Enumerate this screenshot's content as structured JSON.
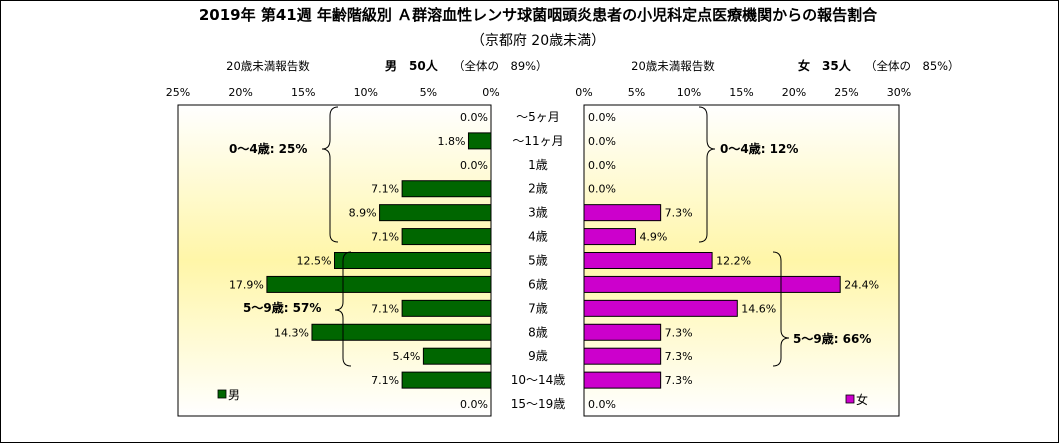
{
  "title": "2019年 第41週 年齢階級別 Ａ群溶血性レンサ球菌咽頭炎患者の小児科定点医療機関からの報告割合",
  "subtitle": "（京都府 20歳未満）",
  "male_header": {
    "label": "20歳未満報告数",
    "count": "男　50人",
    "share": "（全体の　89%）"
  },
  "female_header": {
    "label": "20歳未満報告数",
    "count": "女　35人",
    "share": "（全体の　85%）"
  },
  "brackets": {
    "male_0_4": "0～4歳: 25%",
    "male_5_9": "5～9歳: 57%",
    "female_0_4": "0～4歳: 12%",
    "female_5_9": "5～9歳: 66%"
  },
  "colors": {
    "male": "#006600",
    "female": "#CC00CC",
    "panel_top": "#FFFFFF",
    "panel_mid": "#FFF6A8"
  },
  "chart_data": {
    "type": "bar",
    "orientation": "horizontal-population-pyramid",
    "categories": [
      "～5ヶ月",
      "～11ヶ月",
      "1歳",
      "2歳",
      "3歳",
      "4歳",
      "5歳",
      "6歳",
      "7歳",
      "8歳",
      "9歳",
      "10～14歳",
      "15～19歳"
    ],
    "series": [
      {
        "name": "男",
        "values": [
          0.0,
          1.8,
          0.0,
          7.1,
          8.9,
          7.1,
          12.5,
          17.9,
          7.1,
          14.3,
          5.4,
          7.1,
          0.0
        ],
        "labels": [
          "0.0%",
          "1.8%",
          "0.0%",
          "7.1%",
          "8.9%",
          "7.1%",
          "12.5%",
          "17.9%",
          "7.1%",
          "14.3%",
          "5.4%",
          "7.1%",
          "0.0%"
        ]
      },
      {
        "name": "女",
        "values": [
          0.0,
          0.0,
          0.0,
          0.0,
          7.3,
          4.9,
          12.2,
          24.4,
          14.6,
          7.3,
          7.3,
          7.3,
          0.0
        ],
        "labels": [
          "0.0%",
          "0.0%",
          "0.0%",
          "0.0%",
          "7.3%",
          "4.9%",
          "12.2%",
          "24.4%",
          "14.6%",
          "7.3%",
          "7.3%",
          "7.3%",
          "0.0%"
        ]
      }
    ],
    "male_axis": {
      "range": [
        0,
        25
      ],
      "ticks": [
        "25%",
        "20%",
        "15%",
        "10%",
        "5%",
        "0%"
      ],
      "tick_values": [
        25,
        20,
        15,
        10,
        5,
        0
      ]
    },
    "female_axis": {
      "range": [
        0,
        30
      ],
      "ticks": [
        "0%",
        "5%",
        "10%",
        "15%",
        "20%",
        "25%",
        "30%"
      ],
      "tick_values": [
        0,
        5,
        10,
        15,
        20,
        25,
        30
      ]
    },
    "legend": {
      "male": "男",
      "female": "女",
      "placement": "bottom"
    },
    "grid": false
  }
}
